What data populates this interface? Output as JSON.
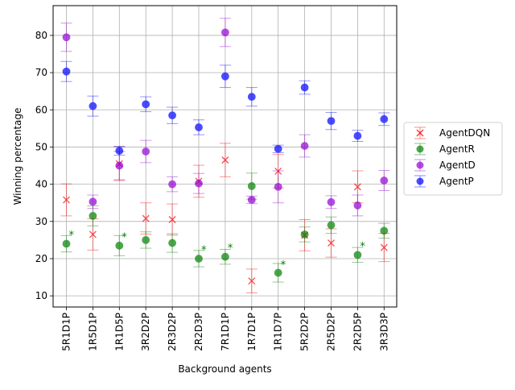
{
  "chart_data": {
    "type": "scatter",
    "xlabel": "Background agents",
    "ylabel": "Winning percentage",
    "categories": [
      "5R1D1P",
      "1R5D1P",
      "1R1D5P",
      "3R2D2P",
      "2R3D2P",
      "2R2D3P",
      "7R1D1P",
      "1R7D1P",
      "1R1D7P",
      "5R2D2P",
      "2R5D2P",
      "2R2D5P",
      "3R3D3P"
    ],
    "ylim": [
      7,
      88
    ],
    "yticks": [
      10,
      20,
      30,
      40,
      50,
      60,
      70,
      80
    ],
    "grid": true,
    "legend_position": "right",
    "series": [
      {
        "name": "AgentDQN",
        "marker": "x",
        "color": "#ff0000",
        "values": [
          35.8,
          26.5,
          45.5,
          30.8,
          30.5,
          40.8,
          46.5,
          14.0,
          43.5,
          26.3,
          24.2,
          39.3,
          23.0
        ],
        "errors": [
          4.3,
          4.2,
          4.5,
          4.2,
          4.2,
          4.3,
          4.5,
          3.2,
          4.5,
          4.2,
          3.8,
          4.3,
          3.8
        ]
      },
      {
        "name": "AgentR",
        "marker": "o",
        "color": "#008000",
        "values": [
          24.0,
          31.5,
          23.5,
          25.0,
          24.2,
          20.0,
          20.5,
          39.5,
          16.2,
          26.5,
          29.0,
          21.0,
          27.5
        ],
        "errors": [
          2.2,
          2.7,
          2.7,
          2.2,
          2.5,
          2.2,
          2.0,
          3.5,
          2.5,
          2.0,
          2.2,
          2.0,
          2.0
        ]
      },
      {
        "name": "AgentD",
        "marker": "o",
        "color": "#9400d3",
        "values": [
          79.5,
          35.3,
          45.0,
          48.8,
          40.0,
          40.2,
          80.8,
          35.8,
          39.3,
          50.3,
          35.2,
          34.3,
          41.0
        ],
        "errors": [
          3.8,
          1.8,
          3.8,
          3.0,
          2.0,
          2.7,
          3.8,
          1.0,
          4.3,
          3.0,
          1.7,
          2.8,
          2.7
        ]
      },
      {
        "name": "AgentP",
        "marker": "o",
        "color": "#0000ff",
        "values": [
          70.3,
          61.0,
          49.0,
          61.5,
          58.5,
          55.3,
          69.0,
          63.5,
          49.5,
          66.0,
          57.0,
          53.0,
          57.5
        ],
        "errors": [
          2.7,
          2.7,
          1.2,
          2.0,
          2.2,
          2.0,
          3.0,
          2.5,
          1.0,
          1.8,
          2.3,
          1.5,
          1.7
        ]
      }
    ],
    "annotations": [
      {
        "text": "*",
        "category": "5R1D1P",
        "y": 26.5
      },
      {
        "text": "*",
        "category": "1R1D5P",
        "y": 26.0
      },
      {
        "text": "*",
        "category": "2R2D3P",
        "y": 22.5
      },
      {
        "text": "*",
        "category": "7R1D1P",
        "y": 23.0
      },
      {
        "text": "*",
        "category": "1R1D7P",
        "y": 18.5
      },
      {
        "text": "*",
        "category": "2R2D5P",
        "y": 23.5
      }
    ]
  }
}
